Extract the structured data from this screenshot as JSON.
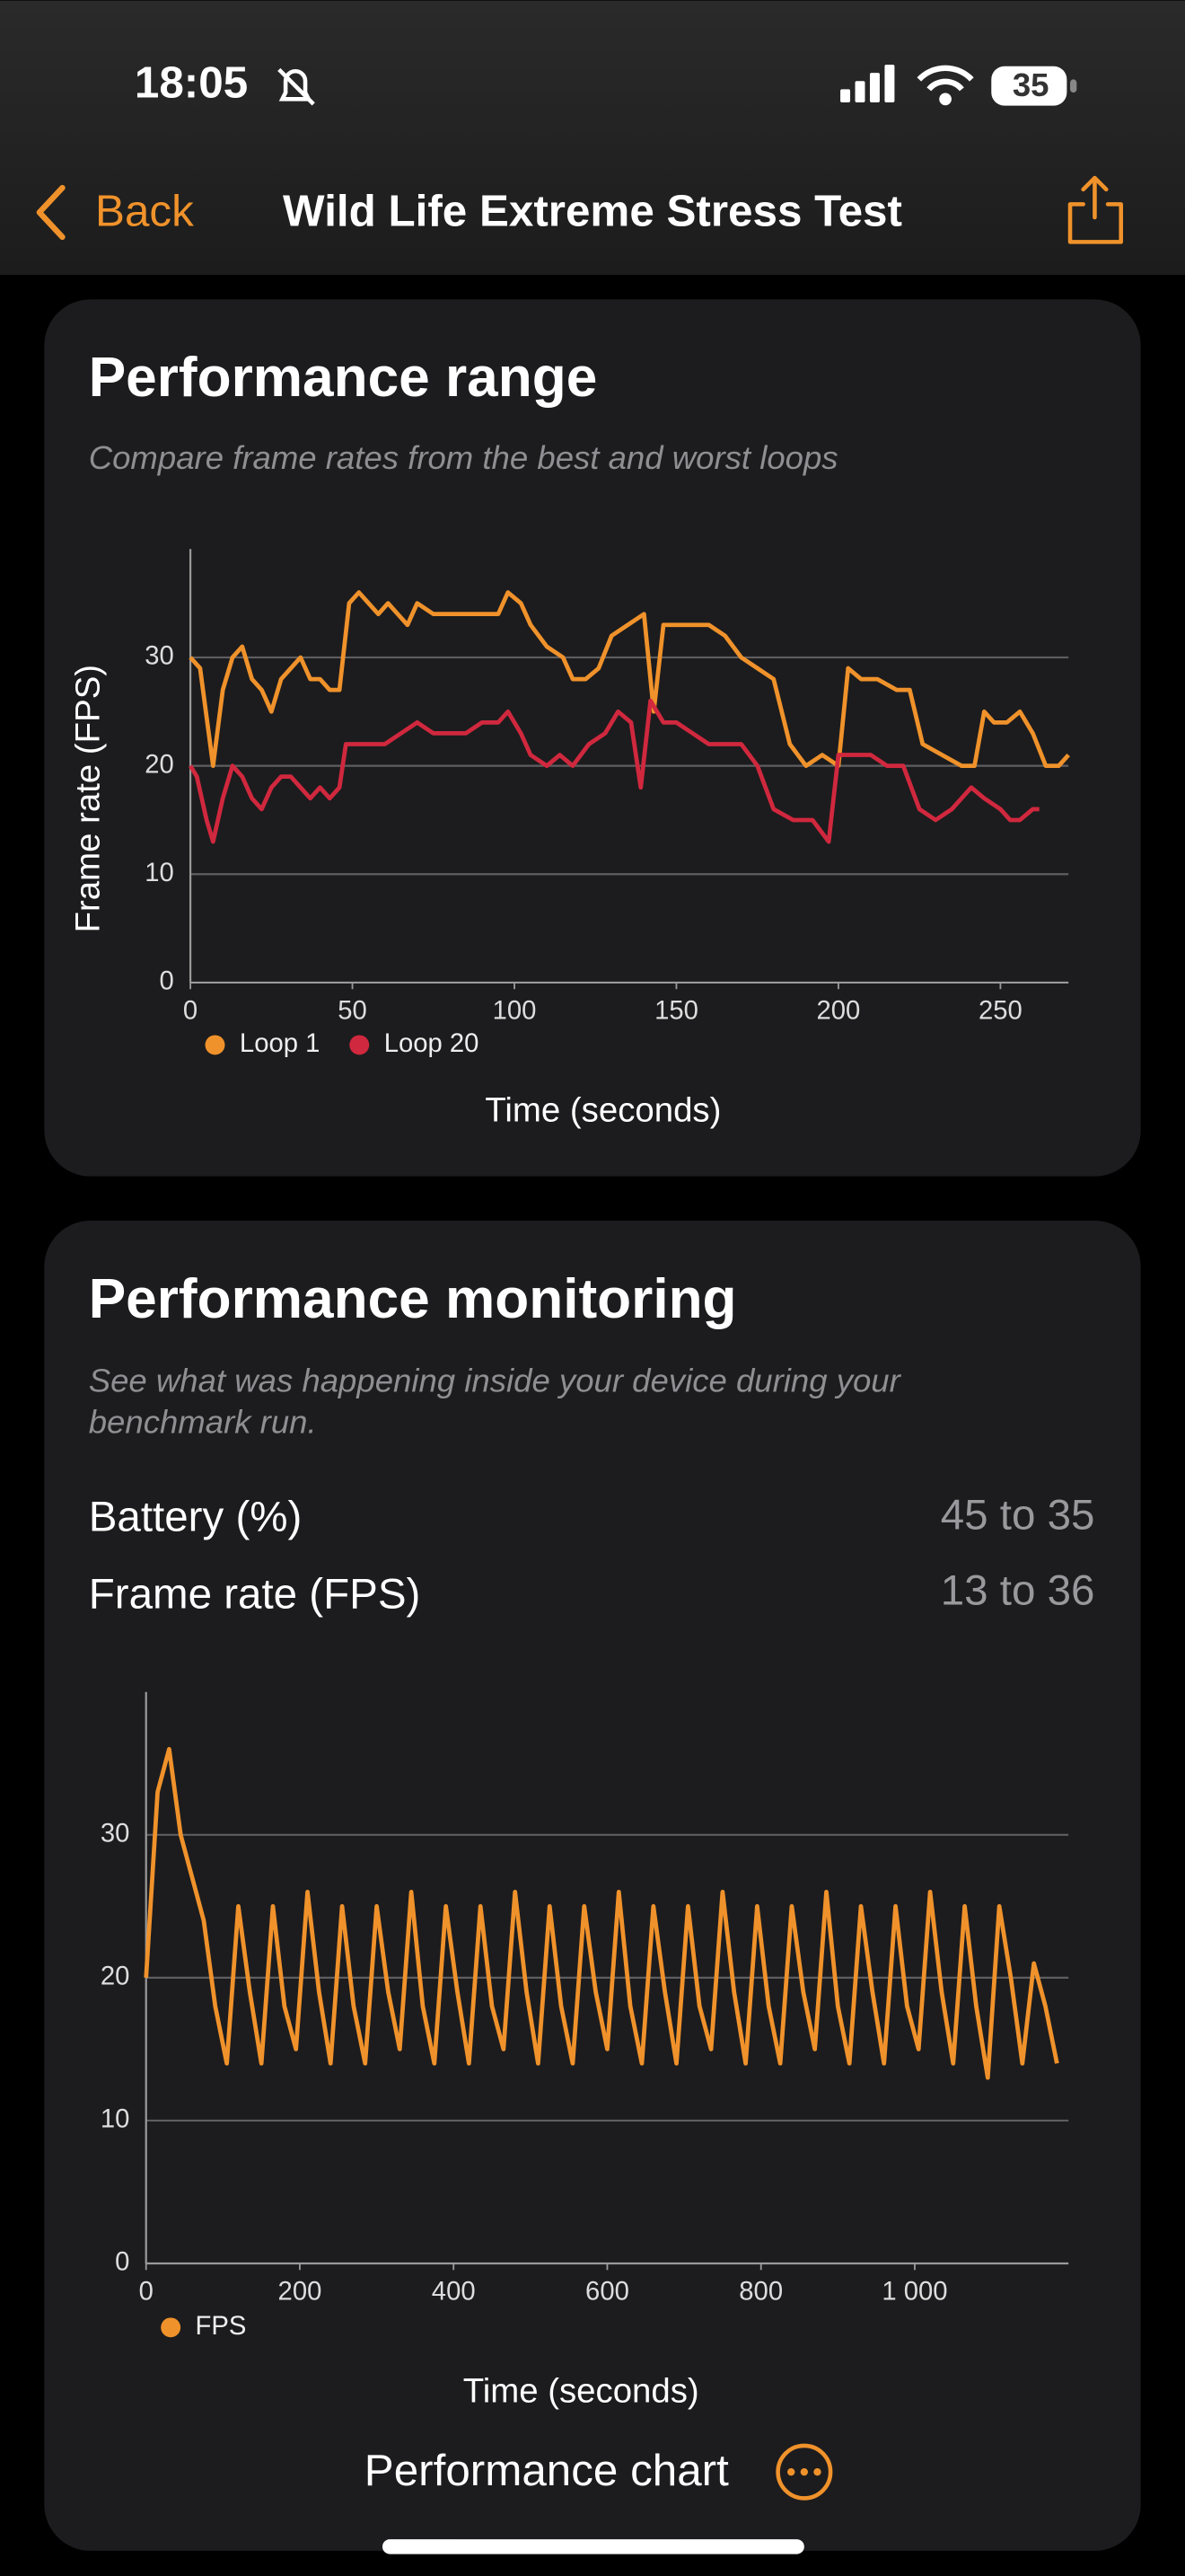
{
  "status": {
    "time": "18:05",
    "battery": "35"
  },
  "nav": {
    "back": "Back",
    "title": "Wild Life Extreme Stress Test"
  },
  "cards": [
    {
      "title": "Performance range",
      "subtitle": [
        "Compare frame rates from the best and worst loops"
      ],
      "chart_data": {
        "type": "line",
        "xlabel": "Time (seconds)",
        "ylabel": "Frame rate (FPS)",
        "xlim": [
          0,
          271
        ],
        "ylim": [
          0,
          40
        ],
        "xticks": [
          0,
          50,
          100,
          150,
          200,
          250
        ],
        "yticks": [
          0,
          10,
          20,
          30
        ],
        "grid": true,
        "legend": "bottom-left",
        "series": [
          {
            "name": "Loop 1",
            "color": "#f0922b",
            "x": [
              0,
              3,
              7,
              10,
              13,
              16,
              19,
              22,
              25,
              28,
              31,
              34,
              37,
              40,
              43,
              46,
              49,
              52,
              55,
              58,
              61,
              64,
              67,
              70,
              75,
              80,
              85,
              90,
              95,
              98,
              102,
              105,
              110,
              115,
              118,
              122,
              126,
              130,
              135,
              140,
              143,
              146,
              150,
              155,
              160,
              165,
              170,
              175,
              180,
              185,
              190,
              195,
              200,
              203,
              207,
              212,
              218,
              222,
              226,
              232,
              238,
              242,
              245,
              248,
              252,
              256,
              260,
              264,
              268,
              271
            ],
            "values": [
              30,
              29,
              20,
              27,
              30,
              31,
              28,
              27,
              25,
              28,
              29,
              30,
              28,
              28,
              27,
              27,
              35,
              36,
              35,
              34,
              35,
              34,
              33,
              35,
              34,
              34,
              34,
              34,
              34,
              36,
              35,
              33,
              31,
              30,
              28,
              28,
              29,
              32,
              33,
              34,
              25,
              33,
              33,
              33,
              33,
              32,
              30,
              29,
              28,
              22,
              20,
              21,
              20,
              29,
              28,
              28,
              27,
              27,
              22,
              21,
              20,
              20,
              25,
              24,
              24,
              25,
              23,
              20,
              20,
              21
            ]
          },
          {
            "name": "Loop 20",
            "color": "#d0283e",
            "x": [
              0,
              2,
              5,
              7,
              10,
              13,
              16,
              19,
              22,
              25,
              28,
              31,
              34,
              37,
              40,
              43,
              46,
              48,
              52,
              56,
              60,
              65,
              70,
              75,
              80,
              85,
              90,
              95,
              98,
              102,
              105,
              110,
              114,
              118,
              123,
              128,
              132,
              136,
              139,
              142,
              146,
              150,
              155,
              160,
              165,
              170,
              175,
              180,
              186,
              192,
              197,
              200,
              205,
              210,
              215,
              220,
              225,
              230,
              235,
              238,
              241,
              245,
              250,
              253,
              256,
              260,
              262
            ],
            "values": [
              20,
              19,
              15,
              13,
              17,
              20,
              19,
              17,
              16,
              18,
              19,
              19,
              18,
              17,
              18,
              17,
              18,
              22,
              22,
              22,
              22,
              23,
              24,
              23,
              23,
              23,
              24,
              24,
              25,
              23,
              21,
              20,
              21,
              20,
              22,
              23,
              25,
              24,
              18,
              26,
              24,
              24,
              23,
              22,
              22,
              22,
              20,
              16,
              15,
              15,
              13,
              21,
              21,
              21,
              20,
              20,
              16,
              15,
              16,
              17,
              18,
              17,
              16,
              15,
              15,
              16,
              16
            ]
          }
        ]
      }
    },
    {
      "title": "Performance monitoring",
      "subtitle": [
        "See what was happening inside your device during your",
        "benchmark run."
      ],
      "stats": [
        {
          "label": "Battery (%)",
          "value": "45 to 35"
        },
        {
          "label": "Frame rate (FPS)",
          "value": "13 to 36"
        }
      ],
      "chart_data": {
        "type": "line",
        "xlabel": "Time (seconds)",
        "xlim": [
          0,
          1200
        ],
        "ylim": [
          0,
          40
        ],
        "xticks": [
          0,
          200,
          400,
          600,
          800,
          {
            "value": 1000,
            "label": "1 000"
          }
        ],
        "yticks": [
          0,
          10,
          20,
          30
        ],
        "grid": true,
        "legend": "bottom-left",
        "series": [
          {
            "name": "FPS",
            "color": "#f0922b",
            "x": [
              0,
              15,
              30,
              45,
              60,
              75,
              90,
              105,
              120,
              135,
              150,
              165,
              180,
              195,
              210,
              225,
              240,
              255,
              270,
              285,
              300,
              315,
              330,
              345,
              360,
              375,
              390,
              405,
              420,
              435,
              450,
              465,
              480,
              495,
              510,
              525,
              540,
              555,
              570,
              585,
              600,
              615,
              630,
              645,
              660,
              675,
              690,
              705,
              720,
              735,
              750,
              765,
              780,
              795,
              810,
              825,
              840,
              855,
              870,
              885,
              900,
              915,
              930,
              945,
              960,
              975,
              990,
              1005,
              1020,
              1035,
              1050,
              1065,
              1080,
              1095,
              1110,
              1125,
              1140,
              1155,
              1170,
              1185
            ],
            "values": [
              20,
              33,
              36,
              30,
              27,
              24,
              18,
              14,
              25,
              19,
              14,
              25,
              18,
              15,
              26,
              19,
              14,
              25,
              18,
              14,
              25,
              19,
              15,
              26,
              18,
              14,
              25,
              19,
              14,
              25,
              18,
              15,
              26,
              19,
              14,
              25,
              18,
              14,
              25,
              19,
              15,
              26,
              18,
              14,
              25,
              19,
              14,
              25,
              18,
              15,
              26,
              19,
              14,
              25,
              18,
              14,
              25,
              19,
              15,
              26,
              18,
              14,
              25,
              19,
              14,
              25,
              18,
              15,
              26,
              19,
              14,
              25,
              18,
              13,
              25,
              20,
              14,
              21,
              18,
              14
            ]
          }
        ]
      },
      "button": "Performance chart"
    }
  ]
}
